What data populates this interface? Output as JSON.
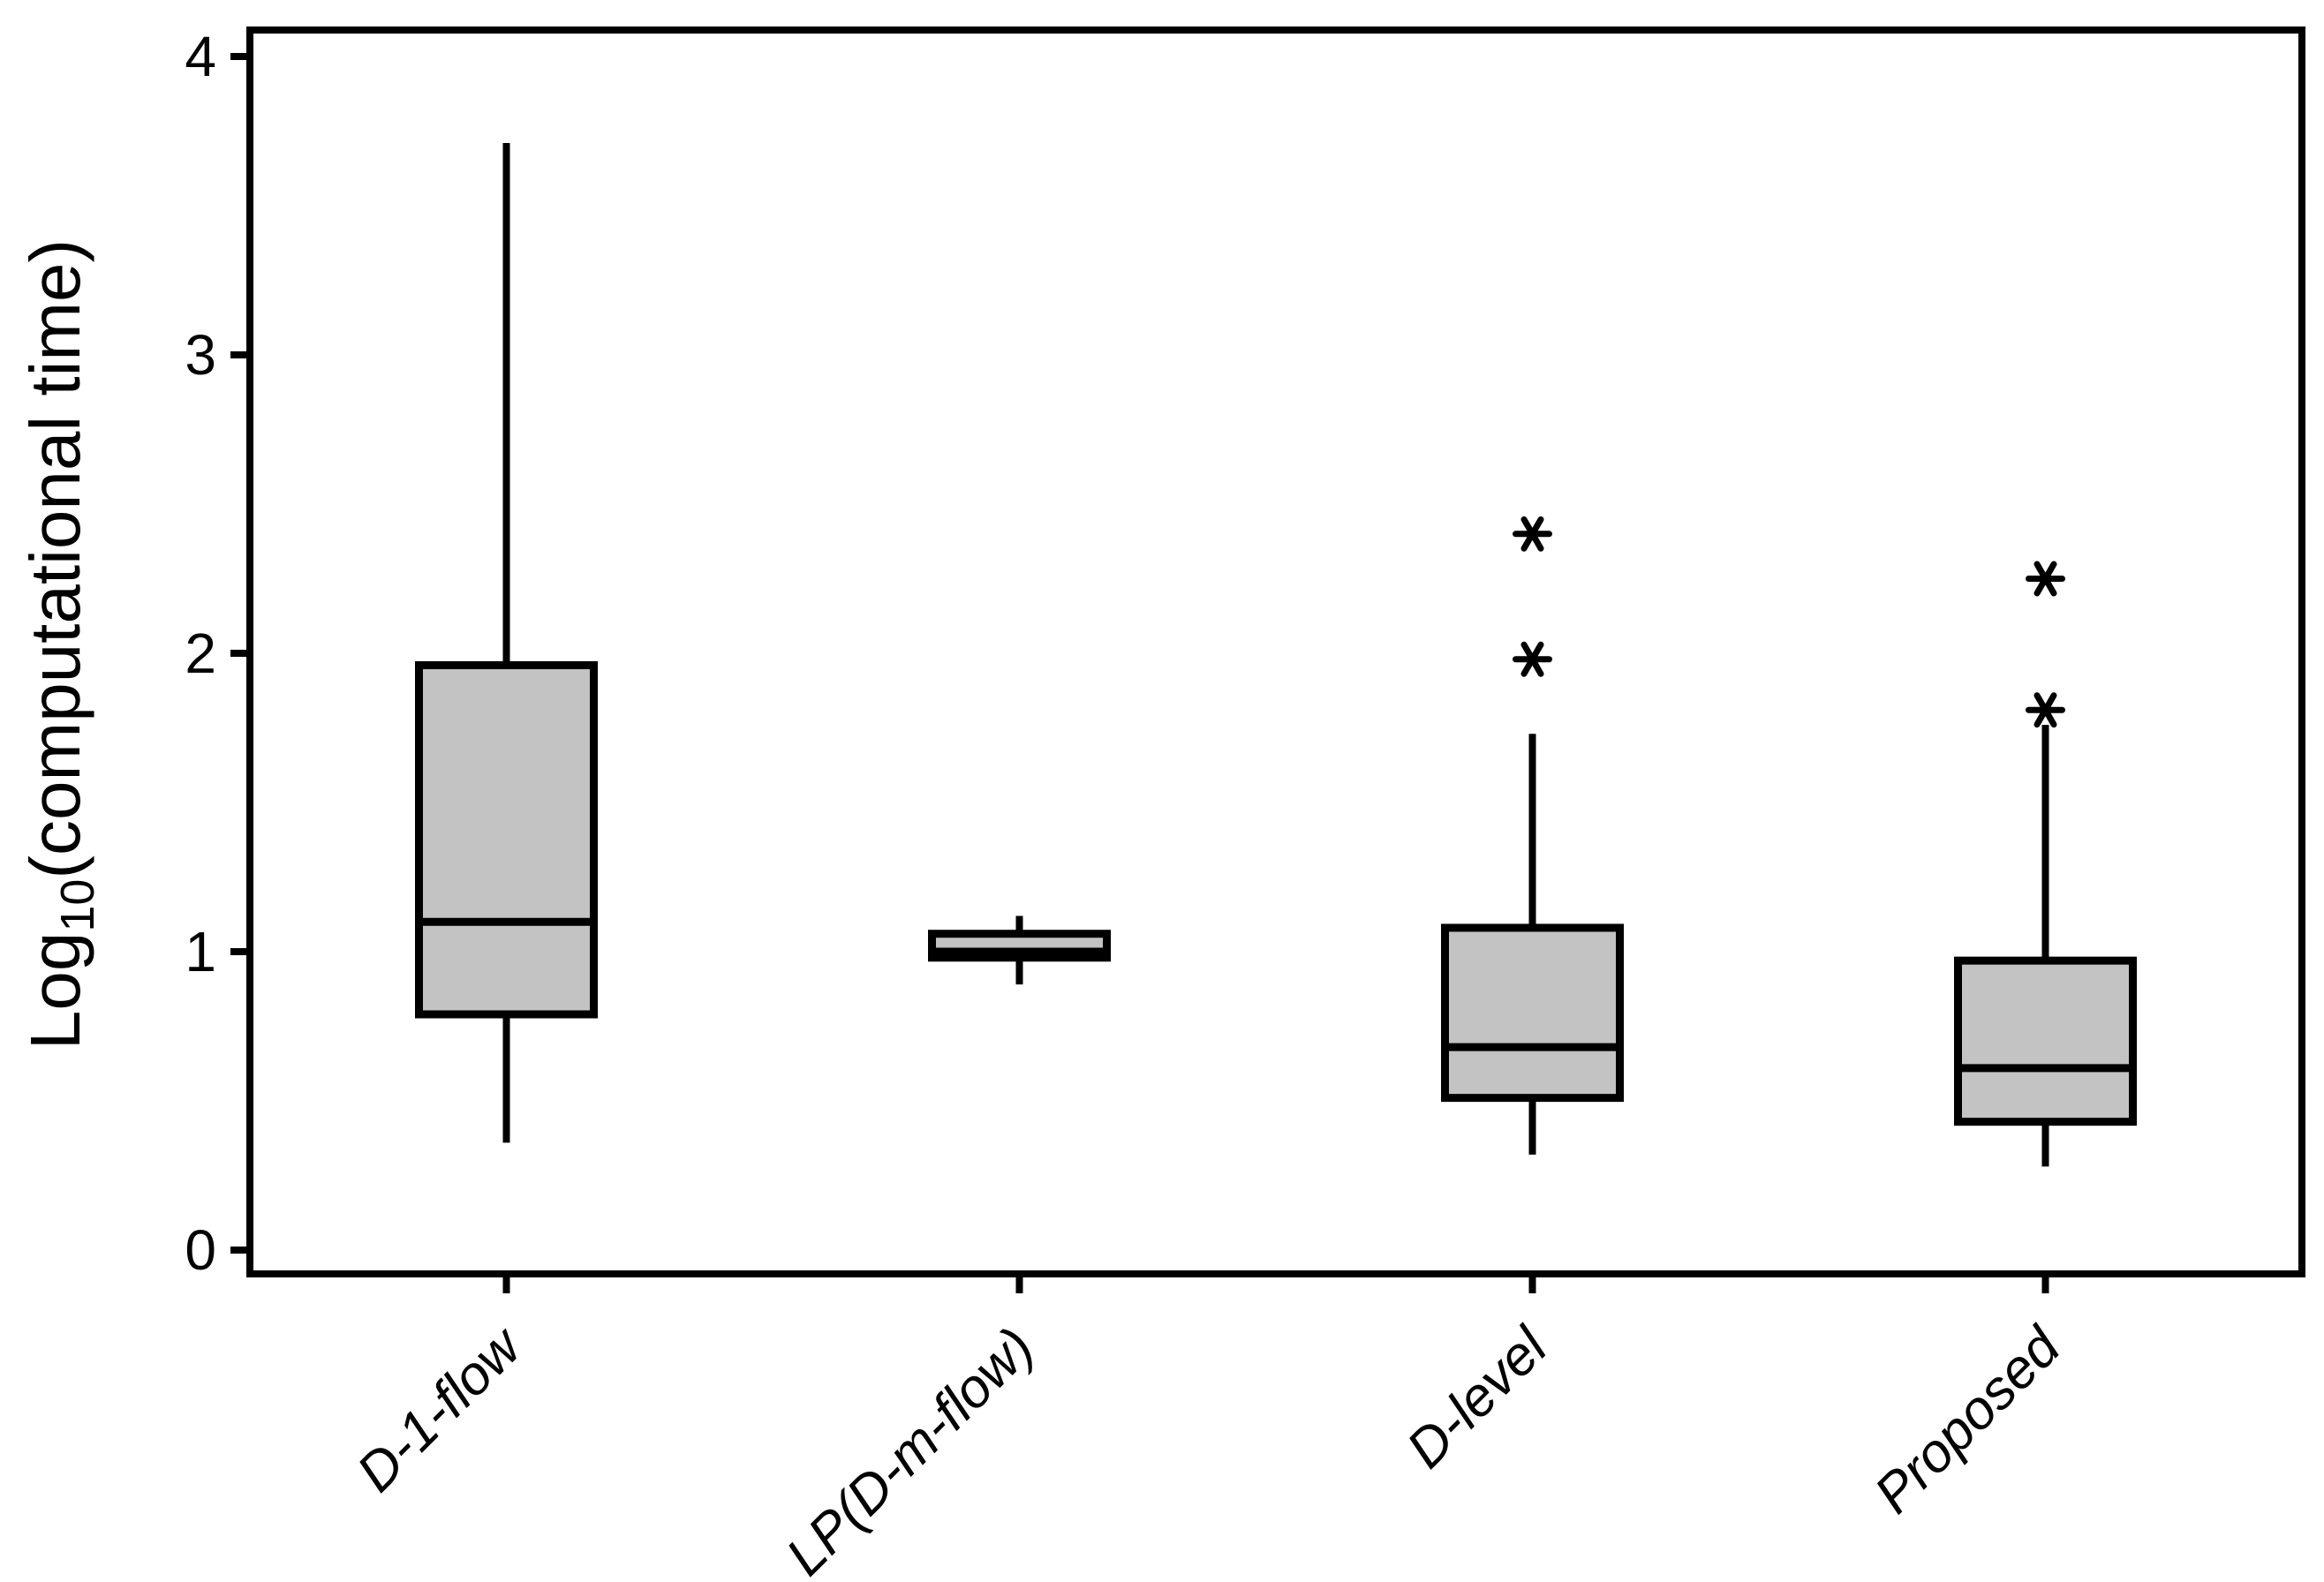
{
  "figure": {
    "background": "#ffffff",
    "box_fill": "#c3c3c3",
    "line_color": "#000000"
  },
  "chart_data": {
    "type": "box",
    "title": "",
    "xlabel": "",
    "ylabel": "Log10(computational time)",
    "ylabel_parts": {
      "prefix": "Log",
      "subscript": "10",
      "suffix": "(computational time)"
    },
    "categories": [
      "D-1-flow",
      "LP(D-m-flow)",
      "D-level",
      "Proposed"
    ],
    "ylim": [
      0,
      4
    ],
    "yticks": [
      0,
      1,
      2,
      3,
      4
    ],
    "grid": false,
    "legend": "none",
    "frame": "full-box",
    "outlier_marker": "asterisk",
    "series": [
      {
        "name": "D-1-flow",
        "whisker_low": 0.36,
        "q1": 0.79,
        "median": 1.1,
        "q3": 1.96,
        "whisker_high": 3.71,
        "outliers": []
      },
      {
        "name": "LP(D-m-flow)",
        "whisker_low": 0.89,
        "q1": 0.98,
        "median": 1.0,
        "q3": 1.06,
        "whisker_high": 1.12,
        "outliers": []
      },
      {
        "name": "D-level",
        "whisker_low": 0.32,
        "q1": 0.51,
        "median": 0.68,
        "q3": 1.08,
        "whisker_high": 1.73,
        "outliers": [
          1.98,
          2.4
        ]
      },
      {
        "name": "Proposed",
        "whisker_low": 0.28,
        "q1": 0.43,
        "median": 0.61,
        "q3": 0.97,
        "whisker_high": 1.76,
        "outliers": [
          1.81,
          2.25
        ]
      }
    ]
  }
}
